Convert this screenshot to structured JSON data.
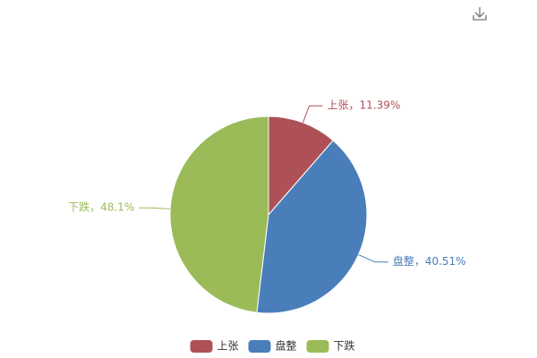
{
  "chart_data": {
    "type": "pie",
    "categories": [
      "上张",
      "盘整",
      "下跌"
    ],
    "values": [
      11.39,
      40.51,
      48.1
    ],
    "value_labels": [
      "上张，11.39%",
      "盘整，40.51%",
      "下跌，48.1%"
    ],
    "colors": [
      "#ae5157",
      "#4a7ebb",
      "#9bbb59"
    ],
    "legend": "bottom"
  }
}
